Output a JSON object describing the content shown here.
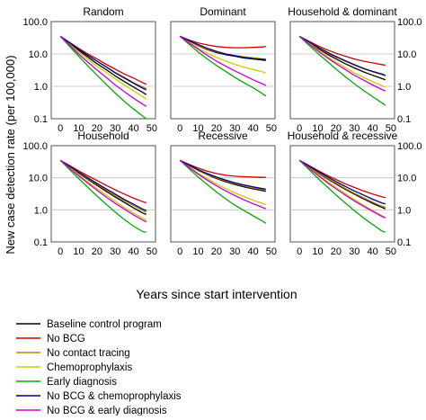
{
  "chart_data": {
    "type": "line",
    "shared": {
      "xlabel": "Years since start intervention",
      "ylabel": "New case detection rate (per 100,000)",
      "x_ticks": [
        0,
        10,
        20,
        30,
        40,
        50
      ],
      "xlim": [
        -5,
        52
      ],
      "y_scale": "log",
      "ylim": [
        0.1,
        100
      ],
      "y_ticks": [
        0.1,
        1,
        10,
        100
      ],
      "y_tick_labels": [
        "0.1",
        "1.0",
        "10.0",
        "100.0"
      ],
      "x": [
        0,
        5,
        10,
        15,
        20,
        25,
        30,
        35,
        40,
        45,
        47
      ],
      "grid": "horizontal"
    },
    "legend": {
      "placement": "bottom-left",
      "entries": [
        {
          "name": "Baseline control program",
          "color": "#000000"
        },
        {
          "name": "No BCG",
          "color": "#cc0000"
        },
        {
          "name": "No contact tracing",
          "color": "#b8860b"
        },
        {
          "name": "Chemoprophylaxis",
          "color": "#cccc00"
        },
        {
          "name": "Early diagnosis",
          "color": "#00aa00"
        },
        {
          "name": "No BCG & chemoprophylaxis",
          "color": "#000080"
        },
        {
          "name": "No BCG & early diagnosis",
          "color": "#cc00cc"
        }
      ]
    },
    "panels": [
      {
        "title": "Random",
        "series": [
          {
            "name": "Baseline control program",
            "values": [
              35,
              21,
              13,
              8,
              5,
              3.3,
              2.1,
              1.4,
              0.95,
              0.65,
              0.55
            ]
          },
          {
            "name": "No BCG",
            "values": [
              35,
              23,
              15,
              10,
              7,
              4.8,
              3.4,
              2.4,
              1.8,
              1.3,
              1.15
            ]
          },
          {
            "name": "No contact tracing",
            "values": [
              35,
              22,
              14,
              9,
              6,
              4,
              2.7,
              1.9,
              1.3,
              0.95,
              0.85
            ]
          },
          {
            "name": "Chemoprophylaxis",
            "values": [
              35,
              20,
              11.5,
              6.8,
              4.2,
              2.7,
              1.7,
              1.1,
              0.72,
              0.48,
              0.4
            ]
          },
          {
            "name": "Early diagnosis",
            "values": [
              35,
              17,
              8.5,
              4.3,
              2.2,
              1.15,
              0.62,
              0.34,
              0.2,
              0.12,
              0.1
            ]
          },
          {
            "name": "No BCG & chemoprophylaxis",
            "values": [
              35,
              22,
              14,
              9,
              6,
              4,
              2.6,
              1.8,
              1.25,
              0.88,
              0.78
            ]
          },
          {
            "name": "No BCG & early diagnosis",
            "values": [
              35,
              19,
              10,
              5.6,
              3.2,
              1.9,
              1.1,
              0.68,
              0.43,
              0.28,
              0.24
            ]
          }
        ]
      },
      {
        "title": "Dominant",
        "series": [
          {
            "name": "Baseline control program",
            "values": [
              35,
              25,
              18,
              13.5,
              11,
              9.5,
              8.5,
              7.5,
              7,
              6.5,
              6.3
            ]
          },
          {
            "name": "No BCG",
            "values": [
              35,
              27,
              22,
              19,
              17,
              16,
              15.5,
              15.5,
              16,
              16.5,
              17
            ]
          },
          {
            "name": "No contact tracing",
            "values": [
              35,
              25,
              18.5,
              14,
              11.5,
              10,
              9,
              8.2,
              7.6,
              7.1,
              7
            ]
          },
          {
            "name": "Chemoprophylaxis",
            "values": [
              35,
              23,
              15,
              10.5,
              7.8,
              6,
              4.8,
              3.9,
              3.3,
              2.8,
              2.6
            ]
          },
          {
            "name": "Early diagnosis",
            "values": [
              35,
              20,
              11.5,
              7,
              4.4,
              2.9,
              1.9,
              1.3,
              0.9,
              0.6,
              0.5
            ]
          },
          {
            "name": "No BCG & chemoprophylaxis",
            "values": [
              35,
              26,
              19.5,
              15,
              12,
              10,
              8.8,
              7.8,
              7.2,
              6.8,
              6.6
            ]
          },
          {
            "name": "No BCG & early diagnosis",
            "values": [
              35,
              22,
              14,
              9,
              6,
              4.2,
              3,
              2.2,
              1.6,
              1.2,
              1.05
            ]
          }
        ]
      },
      {
        "title": "Household & dominant",
        "series": [
          {
            "name": "Baseline control program",
            "values": [
              35,
              23,
              15,
              10,
              7,
              5,
              3.7,
              2.8,
              2.2,
              1.75,
              1.6
            ]
          },
          {
            "name": "No BCG",
            "values": [
              35,
              25,
              18,
              13.5,
              10.5,
              8.5,
              7,
              6,
              5.3,
              4.7,
              4.5
            ]
          },
          {
            "name": "No contact tracing",
            "values": [
              35,
              23.5,
              16,
              11,
              8,
              6,
              4.5,
              3.5,
              2.8,
              2.3,
              2.1
            ]
          },
          {
            "name": "Chemoprophylaxis",
            "values": [
              35,
              22,
              13.5,
              8.5,
              5.6,
              3.8,
              2.6,
              1.9,
              1.4,
              1.05,
              0.95
            ]
          },
          {
            "name": "Early diagnosis",
            "values": [
              35,
              19,
              10.5,
              6,
              3.4,
              2,
              1.2,
              0.75,
              0.48,
              0.31,
              0.26
            ]
          },
          {
            "name": "No BCG & chemoprophylaxis",
            "values": [
              35,
              24,
              16.5,
              11.5,
              8.3,
              6.2,
              4.7,
              3.6,
              2.9,
              2.4,
              2.2
            ]
          },
          {
            "name": "No BCG & early diagnosis",
            "values": [
              35,
              21,
              12.5,
              7.8,
              5,
              3.3,
              2.2,
              1.55,
              1.1,
              0.8,
              0.72
            ]
          }
        ]
      },
      {
        "title": "Household",
        "series": [
          {
            "name": "Baseline control program",
            "values": [
              35,
              22,
              14,
              9,
              5.8,
              3.8,
              2.5,
              1.7,
              1.15,
              0.8,
              0.72
            ]
          },
          {
            "name": "No BCG",
            "values": [
              35,
              24,
              16.5,
              11.5,
              8.2,
              5.8,
              4.2,
              3.1,
              2.3,
              1.8,
              1.65
            ]
          },
          {
            "name": "No contact tracing",
            "values": [
              35,
              22.5,
              14.5,
              9.5,
              6.3,
              4.2,
              2.8,
              1.95,
              1.35,
              0.95,
              0.85
            ]
          },
          {
            "name": "Chemoprophylaxis",
            "values": [
              35,
              21,
              12.5,
              7.5,
              4.6,
              2.9,
              1.85,
              1.2,
              0.8,
              0.55,
              0.48
            ]
          },
          {
            "name": "Early diagnosis",
            "values": [
              35,
              18,
              9.5,
              5,
              2.7,
              1.5,
              0.85,
              0.5,
              0.31,
              0.21,
              0.2
            ]
          },
          {
            "name": "No BCG & chemoprophylaxis",
            "values": [
              35,
              23,
              15,
              10,
              6.7,
              4.5,
              3.1,
              2.1,
              1.5,
              1.05,
              0.95
            ]
          },
          {
            "name": "No BCG & early diagnosis",
            "values": [
              35,
              20,
              11.5,
              6.8,
              4.1,
              2.5,
              1.6,
              1.05,
              0.7,
              0.48,
              0.42
            ]
          }
        ]
      },
      {
        "title": "Recessive",
        "series": [
          {
            "name": "Baseline control program",
            "values": [
              35,
              24,
              17,
              12.5,
              9.5,
              7.5,
              6.2,
              5.2,
              4.5,
              4,
              3.8
            ]
          },
          {
            "name": "No BCG",
            "values": [
              35,
              26,
              20,
              16,
              13.5,
              12,
              11.2,
              10.8,
              10.5,
              10.3,
              10.3
            ]
          },
          {
            "name": "No contact tracing",
            "values": [
              35,
              24.5,
              17.5,
              13,
              10,
              8,
              6.6,
              5.6,
              4.8,
              4.3,
              4.1
            ]
          },
          {
            "name": "Chemoprophylaxis",
            "values": [
              35,
              22,
              14,
              9.3,
              6.4,
              4.6,
              3.4,
              2.6,
              2,
              1.6,
              1.45
            ]
          },
          {
            "name": "Early diagnosis",
            "values": [
              35,
              19,
              10.5,
              6.1,
              3.6,
              2.2,
              1.4,
              0.95,
              0.65,
              0.45,
              0.38
            ]
          },
          {
            "name": "No BCG & chemoprophylaxis",
            "values": [
              35,
              25,
              18,
              13.5,
              10.5,
              8.5,
              7,
              6,
              5.2,
              4.6,
              4.4
            ]
          },
          {
            "name": "No BCG & early diagnosis",
            "values": [
              35,
              21,
              13,
              8.4,
              5.6,
              3.9,
              2.8,
              2.05,
              1.55,
              1.2,
              1.08
            ]
          }
        ]
      },
      {
        "title": "Household & recessive",
        "series": [
          {
            "name": "Baseline control program",
            "values": [
              35,
              22.5,
              14.5,
              9.5,
              6.4,
              4.4,
              3.1,
              2.2,
              1.6,
              1.2,
              1.08
            ]
          },
          {
            "name": "No BCG",
            "values": [
              35,
              24.5,
              17,
              12,
              8.8,
              6.5,
              5,
              3.9,
              3.1,
              2.55,
              2.4
            ]
          },
          {
            "name": "No contact tracing",
            "values": [
              35,
              23,
              15,
              10,
              6.8,
              4.7,
              3.3,
              2.4,
              1.75,
              1.3,
              1.2
            ]
          },
          {
            "name": "Chemoprophylaxis",
            "values": [
              35,
              21,
              12.8,
              7.9,
              5,
              3.2,
              2.1,
              1.4,
              0.95,
              0.66,
              0.58
            ]
          },
          {
            "name": "Early diagnosis",
            "values": [
              35,
              18.5,
              9.8,
              5.3,
              2.9,
              1.65,
              0.95,
              0.56,
              0.35,
              0.22,
              0.2
            ]
          },
          {
            "name": "No BCG & chemoprophylaxis",
            "values": [
              35,
              23.5,
              16,
              11,
              7.6,
              5.4,
              3.9,
              2.9,
              2.15,
              1.65,
              1.52
            ]
          },
          {
            "name": "No BCG & early diagnosis",
            "values": [
              35,
              20.5,
              12,
              7.2,
              4.5,
              2.9,
              1.9,
              1.3,
              0.9,
              0.63,
              0.56
            ]
          }
        ]
      }
    ]
  }
}
